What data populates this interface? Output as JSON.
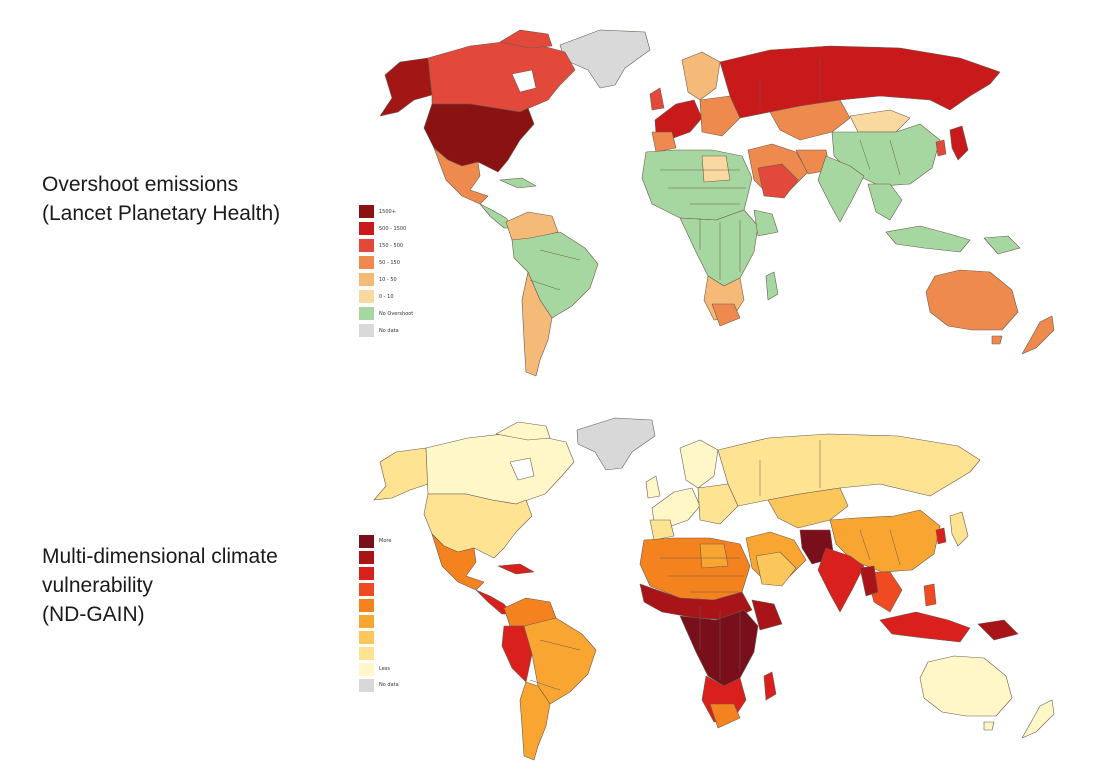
{
  "panels": [
    {
      "caption_lines": [
        "Overshoot emissions",
        "(Lancet Planetary Health)"
      ],
      "legend": [
        {
          "label": "1500+",
          "color": "#8b1212"
        },
        {
          "label": "500 - 1500",
          "color": "#c81a1a"
        },
        {
          "label": "150 - 500",
          "color": "#e2493a"
        },
        {
          "label": "50 - 150",
          "color": "#ef8a4e"
        },
        {
          "label": "10 - 50",
          "color": "#f5ba78"
        },
        {
          "label": "0 - 10",
          "color": "#f9d9a0"
        },
        {
          "label": "No Overshoot",
          "color": "#a7d7a0"
        },
        {
          "label": "No data",
          "color": "#d9d9d9"
        }
      ]
    },
    {
      "caption_lines": [
        "Multi-dimensional climate",
        "vulnerability",
        "(ND-GAIN)"
      ],
      "legend": [
        {
          "label": "More",
          "color": "#7a0f1c"
        },
        {
          "label": "",
          "color": "#a81418"
        },
        {
          "label": "",
          "color": "#d9201d"
        },
        {
          "label": "",
          "color": "#ef4a22"
        },
        {
          "label": "",
          "color": "#f4821e"
        },
        {
          "label": "",
          "color": "#f8a532"
        },
        {
          "label": "",
          "color": "#fbc75a"
        },
        {
          "label": "",
          "color": "#fde392"
        },
        {
          "label": "Less",
          "color": "#fff7c8"
        },
        {
          "label": "No data",
          "color": "#d8d8d8"
        }
      ]
    }
  ]
}
